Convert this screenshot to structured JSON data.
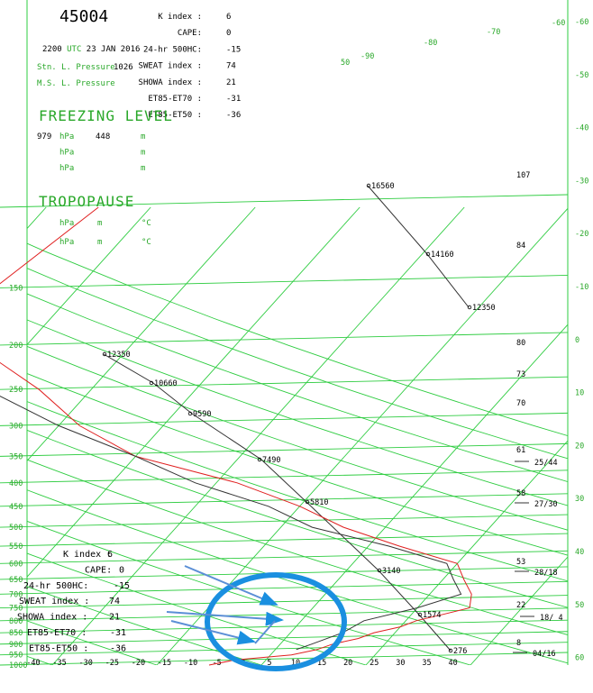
{
  "station": {
    "id": "45004",
    "time_prefix": "2200",
    "time_utc": "UTC",
    "date": "23 JAN 2016",
    "stn_pressure_label": "Stn. L. Pressure",
    "stn_pressure_value": "1026",
    "msl_pressure_label": "M.S. L. Pressure"
  },
  "indices": [
    {
      "label": "K index :",
      "value": "6"
    },
    {
      "label": "CAPE:",
      "value": "0"
    },
    {
      "label": "24-hr 500HC:",
      "value": "-15"
    },
    {
      "label": "SWEAT index :",
      "value": "74"
    },
    {
      "label": "SHOWA index :",
      "value": "21"
    },
    {
      "label": "ET85-ET70 :",
      "value": "-31"
    },
    {
      "label": "ET85-ET50 :",
      "value": "-36"
    }
  ],
  "freezing_level": {
    "title": "FREEZING LEVEL",
    "rows": [
      {
        "p": "979",
        "unit_p": "hPa",
        "h": "448",
        "unit_h": "m"
      },
      {
        "p": "",
        "unit_p": "hPa",
        "h": "",
        "unit_h": "m"
      },
      {
        "p": "",
        "unit_p": "hPa",
        "h": "",
        "unit_h": "m"
      }
    ]
  },
  "tropopause": {
    "title": "TROPOPAUSE",
    "rows": [
      {
        "unit_p": "hPa",
        "unit_h": "m",
        "unit_t": "°C"
      },
      {
        "unit_p": "hPa",
        "unit_h": "m",
        "unit_t": "°C"
      }
    ]
  },
  "overlay_indices": [
    {
      "label": "K index :",
      "value": "6"
    },
    {
      "label": "CAPE:",
      "value": "0"
    },
    {
      "label": "24-hr 500HC:",
      "value": "-15"
    },
    {
      "label": "SWEAT index :",
      "value": "74"
    },
    {
      "label": "SHOWA index :",
      "value": "21"
    },
    {
      "label": "ET85-ET70 :",
      "value": "-31"
    },
    {
      "label": "ET85-ET50 :",
      "value": "-36"
    }
  ],
  "colors": {
    "grid": "#2ecc40",
    "temperature": "#e02020",
    "dewpoint": "#333333",
    "parcel": "#333333",
    "annotation": "#1a8fe0",
    "accent_text": "#2aa82a"
  },
  "chart_data": {
    "type": "line",
    "xlabel": "",
    "ylabel": "",
    "xlim": [
      -40,
      40
    ],
    "ylim": [
      1000,
      100
    ],
    "x_ticks": [
      "-40",
      "-35",
      "-30",
      "-25",
      "-20",
      "-15",
      "-10",
      "-5",
      "0",
      "5",
      "10",
      "15",
      "20",
      "25",
      "30",
      "35",
      "40"
    ],
    "pressure_ticks": [
      "1000",
      "950",
      "900",
      "850",
      "800",
      "750",
      "700",
      "650",
      "600",
      "550",
      "500",
      "450",
      "400",
      "350",
      "300",
      "250",
      "200",
      "150",
      "100"
    ],
    "upper_isotherm_labels": [
      "50",
      "-90",
      "-80",
      "-70",
      "-60"
    ],
    "right_axis_ticks": [
      "-60",
      "-50",
      "-40",
      "-30",
      "-20",
      "-10",
      "0",
      "10",
      "20",
      "30",
      "40",
      "50",
      "60"
    ],
    "height_labels": [
      {
        "p": 925,
        "text": "276"
      },
      {
        "p": 850,
        "text": "1574"
      },
      {
        "p": 700,
        "text": "3140"
      },
      {
        "p": 500,
        "text": "5810"
      },
      {
        "p": 400,
        "text": "7490"
      },
      {
        "p": 300,
        "text": "9590"
      },
      {
        "p": 250,
        "text": "10660"
      },
      {
        "p": 200,
        "text": "12350"
      }
    ],
    "upper_height_labels": [
      "16560",
      "14160",
      "12350"
    ],
    "right_values": [
      {
        "text": "107"
      },
      {
        "text": "84"
      },
      {
        "text": "80"
      },
      {
        "text": "73"
      },
      {
        "text": "70"
      },
      {
        "text": "61"
      },
      {
        "text": "58"
      },
      {
        "text": "53"
      },
      {
        "text": "22"
      },
      {
        "text": "8"
      }
    ],
    "wind_labels": [
      "25/44",
      "27/30",
      "28/18",
      "18/ 4",
      "04/16"
    ],
    "series": [
      {
        "name": "",
        "points": [
          [
            1000,
            -5
          ],
          [
            975,
            -3
          ],
          [
            950,
            2
          ],
          [
            925,
            4
          ],
          [
            900,
            5
          ],
          [
            875,
            7
          ],
          [
            850,
            8
          ],
          [
            825,
            10
          ],
          [
            800,
            11
          ],
          [
            775,
            13
          ],
          [
            750,
            15
          ],
          [
            700,
            14
          ],
          [
            650,
            12
          ],
          [
            600,
            10
          ],
          [
            550,
            3
          ],
          [
            500,
            -4
          ],
          [
            450,
            -10
          ],
          [
            400,
            -18
          ],
          [
            350,
            -30
          ],
          [
            300,
            -38
          ],
          [
            250,
            -45
          ],
          [
            200,
            -55
          ],
          [
            150,
            -58
          ],
          [
            100,
            -55
          ]
        ]
      },
      {
        "name": "",
        "points": [
          [
            925,
            2
          ],
          [
            900,
            3
          ],
          [
            850,
            5
          ],
          [
            800,
            6
          ],
          [
            750,
            10
          ],
          [
            700,
            13
          ],
          [
            650,
            11
          ],
          [
            600,
            9
          ],
          [
            550,
            2
          ],
          [
            500,
            -7
          ],
          [
            450,
            -13
          ],
          [
            400,
            -22
          ],
          [
            350,
            -30
          ],
          [
            300,
            -40
          ],
          [
            250,
            -50
          ],
          [
            200,
            -60
          ],
          [
            150,
            -70
          ],
          [
            100,
            -75
          ]
        ]
      }
    ]
  }
}
